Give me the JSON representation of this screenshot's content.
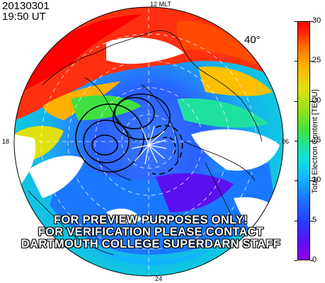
{
  "header": {
    "date": "20130301",
    "time": "19:50 UT"
  },
  "mlt_labels": {
    "top": "12 MLT",
    "right": "06",
    "left": "18",
    "bottom": "24"
  },
  "latitude_label": "40°",
  "watermark": [
    "FOR PREVIEW PURPOSES ONLY!",
    "FOR VERIFICATION PLEASE CONTACT",
    "DARTMOUTH COLLEGE SUPERDARN STAFF"
  ],
  "colorbar": {
    "title": "Total Electron Content [TECU]",
    "ticks": [
      "0",
      "5",
      "10",
      "15",
      "20",
      "25",
      "30"
    ],
    "range": [
      0,
      30
    ],
    "colors": {
      "low": "#8a00e6",
      "mid": "#20e0a0",
      "high": "#ff0000"
    }
  },
  "icons": [
    "coastline-map",
    "convection-contours"
  ]
}
